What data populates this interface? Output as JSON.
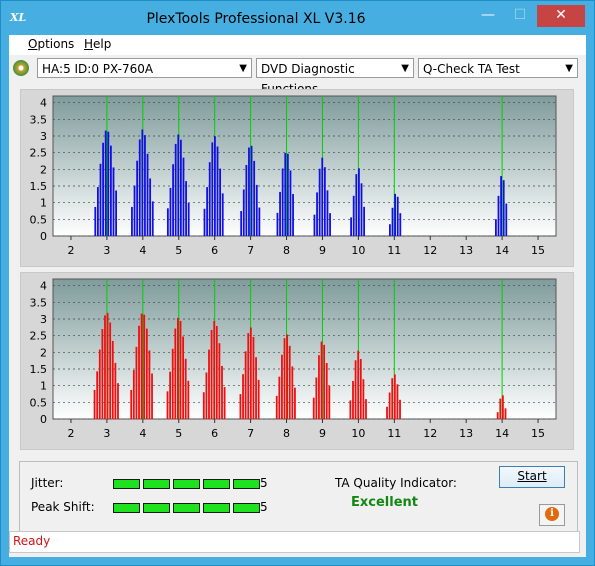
{
  "window": {
    "title": "PlexTools Professional XL V3.16",
    "logo_text": "XL",
    "controls": {
      "minimize": "—",
      "maximize": "☐",
      "close": "✕"
    }
  },
  "menu": {
    "items": [
      {
        "underline": "O",
        "rest": "ptions"
      },
      {
        "underline": "H",
        "rest": "elp"
      }
    ]
  },
  "toolbar": {
    "drive": "HA:5 ID:0  PX-760A",
    "function": "DVD Diagnostic Functions",
    "test": "Q-Check TA Test",
    "drive_icon": "disc-icon"
  },
  "colors": {
    "grid_bg_top": "#7f9b9b",
    "grid_bg_bottom": "#ffffff",
    "top_bars": "#1010e0",
    "bottom_bars": "#ee1010",
    "marker": "#00d000",
    "excellent": "#118811"
  },
  "chart_data": [
    {
      "type": "bar",
      "xlim": [
        1.5,
        15.5
      ],
      "ylim": [
        0,
        4.2
      ],
      "x_ticks": [
        "2",
        "3",
        "4",
        "5",
        "6",
        "7",
        "8",
        "9",
        "10",
        "11",
        "12",
        "13",
        "14",
        "15"
      ],
      "y_ticks": [
        "4",
        "3.5",
        "3",
        "2.5",
        "2",
        "1.5",
        "1",
        "0.5",
        "0"
      ],
      "markers": [
        3,
        4,
        5,
        6,
        7,
        8,
        9,
        10,
        11,
        14
      ],
      "peaks": [
        {
          "center": 3.0,
          "height": 3.2,
          "width": 0.32
        },
        {
          "center": 4.0,
          "height": 3.2,
          "width": 0.3
        },
        {
          "center": 5.0,
          "height": 3.05,
          "width": 0.3
        },
        {
          "center": 6.0,
          "height": 3.0,
          "width": 0.28
        },
        {
          "center": 7.0,
          "height": 2.75,
          "width": 0.26
        },
        {
          "center": 8.0,
          "height": 2.55,
          "width": 0.25
        },
        {
          "center": 9.0,
          "height": 2.35,
          "width": 0.22
        },
        {
          "center": 10.0,
          "height": 2.05,
          "width": 0.2
        },
        {
          "center": 11.05,
          "height": 1.3,
          "width": 0.17
        },
        {
          "center": 14.0,
          "height": 1.85,
          "width": 0.17
        }
      ]
    },
    {
      "type": "bar",
      "xlim": [
        1.5,
        15.5
      ],
      "ylim": [
        0,
        4.2
      ],
      "x_ticks": [
        "2",
        "3",
        "4",
        "5",
        "6",
        "7",
        "8",
        "9",
        "10",
        "11",
        "12",
        "13",
        "14",
        "15"
      ],
      "y_ticks": [
        "4",
        "3.5",
        "3",
        "2.5",
        "2",
        "1.5",
        "1",
        "0.5",
        "0"
      ],
      "markers": [
        3,
        4,
        5,
        6,
        7,
        8,
        9,
        10,
        11,
        14
      ],
      "peaks": [
        {
          "center": 3.0,
          "height": 3.2,
          "width": 0.34
        },
        {
          "center": 4.0,
          "height": 3.2,
          "width": 0.32
        },
        {
          "center": 5.0,
          "height": 3.05,
          "width": 0.31
        },
        {
          "center": 6.0,
          "height": 2.95,
          "width": 0.3
        },
        {
          "center": 7.0,
          "height": 2.75,
          "width": 0.28
        },
        {
          "center": 8.0,
          "height": 2.55,
          "width": 0.27
        },
        {
          "center": 9.0,
          "height": 2.35,
          "width": 0.24
        },
        {
          "center": 10.0,
          "height": 2.05,
          "width": 0.22
        },
        {
          "center": 11.0,
          "height": 1.35,
          "width": 0.2
        },
        {
          "center": 14.0,
          "height": 0.75,
          "width": 0.12
        }
      ]
    }
  ],
  "results": {
    "jitter_label": "Jitter:",
    "jitter_value": "5",
    "peak_label": "Peak Shift:",
    "peak_value": "5",
    "ta_label": "TA Quality Indicator:",
    "ta_value": "Excellent",
    "start": "Start",
    "info_glyph": "i",
    "info_icon": "info-icon",
    "jitter_segments": 5,
    "peak_segments": 5
  },
  "status": "Ready"
}
